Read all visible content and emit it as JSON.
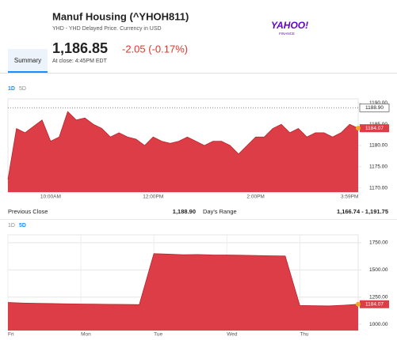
{
  "header": {
    "title": "Manuf Housing (^YHOH811)",
    "subtitle": "YHD - YHD Delayed Price. Currency in USD",
    "price": "1,186.85",
    "change": "-2.05 (-0.17%)",
    "close_time": "At close: 4:45PM EDT",
    "logo": "YAHOO!",
    "logo_sub": "FINANCE"
  },
  "nav": {
    "tab": "Summary"
  },
  "stats": [
    {
      "label": "Previous Close",
      "value": "1,188.90"
    },
    {
      "label": "Day's Range",
      "value": "1,166.74 - 1,191.75"
    }
  ],
  "chart_data": [
    {
      "type": "area",
      "tabs": [
        "1D",
        "5D"
      ],
      "active_tab": 0,
      "color": "#dc3d46",
      "categories": [
        null,
        null,
        null,
        null,
        null,
        "10:00AM",
        null,
        null,
        null,
        null,
        null,
        null,
        null,
        null,
        null,
        null,
        null,
        "12:00PM",
        null,
        null,
        null,
        null,
        null,
        null,
        null,
        null,
        null,
        null,
        null,
        "2:00PM",
        null,
        null,
        null,
        null,
        null,
        null,
        null,
        null,
        null,
        null,
        "3:59PM",
        null
      ],
      "values": [
        1172,
        1184,
        1183,
        1184.5,
        1186,
        1181,
        1182,
        1188,
        1186,
        1186.5,
        1185,
        1184,
        1182,
        1183,
        1182,
        1181.5,
        1180,
        1182,
        1181,
        1180.5,
        1181,
        1182,
        1181,
        1180,
        1181,
        1181,
        1180,
        1178,
        1180,
        1182,
        1182,
        1184,
        1185,
        1183,
        1184,
        1182,
        1183,
        1183,
        1182,
        1183,
        1185,
        1184.07
      ],
      "ylim": [
        1169,
        1191
      ],
      "yticks": [
        {
          "value": 1170,
          "label": "1170.00"
        },
        {
          "value": 1175,
          "label": "1175.00"
        },
        {
          "value": 1180,
          "label": "1180.00"
        },
        {
          "value": 1185,
          "label": "1185.00"
        },
        {
          "value": 1190,
          "label": "1190.00"
        }
      ],
      "previous_close": {
        "value": 1188.9,
        "label": "1188.90"
      },
      "last": 1184.07,
      "grid": false
    },
    {
      "type": "area",
      "tabs": [
        "1D",
        "5D"
      ],
      "active_tab": 1,
      "color": "#dc3d46",
      "categories": [
        "Fri",
        null,
        null,
        null,
        null,
        "Mon",
        null,
        null,
        null,
        null,
        "Tue",
        null,
        null,
        null,
        null,
        "Wed",
        null,
        null,
        null,
        null,
        "Thu",
        null,
        null,
        null,
        null
      ],
      "values": [
        1200,
        1195,
        1192,
        1190,
        1188,
        1186,
        1185,
        1183,
        1182,
        1180,
        1650,
        1645,
        1640,
        1642,
        1638,
        1637,
        1635,
        1633,
        1630,
        1628,
        1172,
        1170,
        1168,
        1175,
        1184.07
      ],
      "ylim": [
        942,
        1823
      ],
      "yticks": [
        {
          "value": 1000,
          "label": "1000.00"
        },
        {
          "value": 1250,
          "label": "1250.00"
        },
        {
          "value": 1500,
          "label": "1500.00"
        },
        {
          "value": 1750,
          "label": "1750.00"
        }
      ],
      "last": 1184.07,
      "grid": true
    }
  ]
}
